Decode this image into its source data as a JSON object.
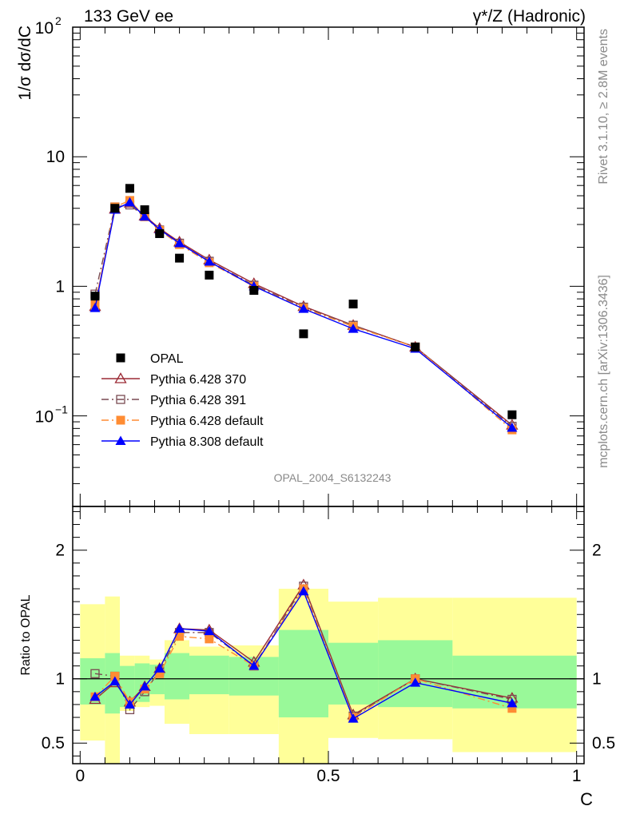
{
  "header": {
    "left_title": "133 GeV ee",
    "right_title": "γ*/Z (Hadronic)"
  },
  "side_labels": {
    "rivet": "Rivet 3.1.10, ≥ 2.8M events",
    "mcplots": "mcplots.cern.ch [arXiv:1306.3436]"
  },
  "watermark": "OPAL_2004_S6132243",
  "chart_data": [
    {
      "type": "scatter",
      "panel": "main",
      "ylabel": "1/σ dσ/dC",
      "yscale": "log",
      "ylim": [
        0.02,
        100
      ],
      "xlim": [
        -0.015,
        1.015
      ],
      "yticks": [
        {
          "value": 0.1,
          "label_base": "10",
          "label_exp": "−1"
        },
        {
          "value": 1,
          "label": "1"
        },
        {
          "value": 10,
          "label": "10"
        },
        {
          "value": 100,
          "label_base": "10",
          "label_exp": "2"
        }
      ],
      "legend_position": "lower-left",
      "x": [
        0.03,
        0.07,
        0.1,
        0.13,
        0.16,
        0.2,
        0.26,
        0.35,
        0.45,
        0.55,
        0.675,
        0.87
      ],
      "series": [
        {
          "name": "OPAL",
          "color": "#000000",
          "marker": "filled-square",
          "line": "none",
          "values": [
            0.84,
            4.0,
            5.7,
            3.9,
            2.55,
            1.65,
            1.22,
            0.93,
            0.43,
            0.73,
            0.34,
            0.102
          ]
        },
        {
          "name": "Pythia 6.428 370",
          "color": "#9b2a35",
          "marker": "open-triangle",
          "line": "solid",
          "values": [
            0.7,
            3.95,
            4.4,
            3.5,
            2.8,
            2.2,
            1.6,
            1.05,
            0.7,
            0.5,
            0.34,
            0.085
          ]
        },
        {
          "name": "Pythia 6.428 391",
          "color": "#7a4a52",
          "marker": "open-square",
          "line": "dash-dot",
          "values": [
            0.87,
            4.1,
            4.25,
            3.45,
            2.72,
            2.15,
            1.56,
            1.02,
            0.69,
            0.5,
            0.34,
            0.083
          ]
        },
        {
          "name": "Pythia 6.428 default",
          "color": "#ff8c33",
          "marker": "filled-square",
          "line": "dash-dot",
          "values": [
            0.72,
            4.1,
            4.6,
            3.45,
            2.7,
            2.1,
            1.52,
            1.0,
            0.68,
            0.49,
            0.34,
            0.078
          ]
        },
        {
          "name": "Pythia 8.308 default",
          "color": "#0000ff",
          "marker": "filled-triangle",
          "line": "solid",
          "values": [
            0.68,
            3.9,
            4.45,
            3.45,
            2.75,
            2.15,
            1.55,
            1.0,
            0.67,
            0.47,
            0.33,
            0.081
          ]
        }
      ]
    },
    {
      "type": "line",
      "panel": "ratio",
      "ylabel": "Ratio to OPAL",
      "xlabel": "C",
      "ylim": [
        0.34,
        2.34
      ],
      "xlim": [
        -0.015,
        1.015
      ],
      "yticks": [
        0.5,
        1,
        2
      ],
      "xticks": [
        0,
        0.5,
        1
      ],
      "reference_line": 1,
      "bands": {
        "edges": [
          0,
          0.05,
          0.08,
          0.11,
          0.14,
          0.17,
          0.22,
          0.3,
          0.4,
          0.5,
          0.6,
          0.75,
          1.0
        ],
        "inner": [
          [
            0.8,
            1.16
          ],
          [
            0.73,
            1.2
          ],
          [
            0.78,
            1.1
          ],
          [
            0.82,
            1.12
          ],
          [
            0.88,
            1.11
          ],
          [
            0.84,
            1.2
          ],
          [
            0.88,
            1.18
          ],
          [
            0.87,
            1.17
          ],
          [
            0.7,
            1.38
          ],
          [
            0.8,
            1.28
          ],
          [
            0.78,
            1.3
          ],
          [
            0.77,
            1.18
          ]
        ],
        "outer": [
          [
            0.52,
            1.58
          ],
          [
            0.34,
            1.64
          ],
          [
            0.75,
            1.18
          ],
          [
            0.78,
            1.18
          ],
          [
            0.79,
            1.15
          ],
          [
            0.65,
            1.3
          ],
          [
            0.57,
            1.25
          ],
          [
            0.57,
            1.26
          ],
          [
            0.34,
            1.7
          ],
          [
            0.54,
            1.6
          ],
          [
            0.53,
            1.63
          ],
          [
            0.43,
            1.63
          ]
        ],
        "inner_color": "#99f999",
        "outer_color": "#ffff99"
      },
      "x": [
        0.03,
        0.07,
        0.1,
        0.13,
        0.16,
        0.2,
        0.26,
        0.35,
        0.45,
        0.55,
        0.675,
        0.87
      ],
      "series": [
        {
          "name": "Pythia 6.428 370",
          "color": "#9b2a35",
          "marker": "open-triangle",
          "line": "solid",
          "values": [
            0.84,
            0.97,
            0.82,
            0.94,
            1.08,
            1.39,
            1.38,
            1.13,
            1.73,
            0.72,
            1.0,
            0.85
          ]
        },
        {
          "name": "Pythia 6.428 391",
          "color": "#7a4a52",
          "marker": "open-square",
          "line": "dash-dot",
          "values": [
            1.04,
            1.02,
            0.76,
            0.9,
            1.06,
            1.36,
            1.36,
            1.1,
            1.72,
            0.71,
            1.0,
            0.84
          ]
        },
        {
          "name": "Pythia 6.428 default",
          "color": "#ff8c33",
          "marker": "filled-square",
          "line": "dash-dot",
          "values": [
            0.86,
            1.02,
            0.82,
            0.92,
            1.04,
            1.33,
            1.31,
            1.1,
            1.7,
            0.7,
            1.0,
            0.77
          ]
        },
        {
          "name": "Pythia 8.308 default",
          "color": "#0000ff",
          "marker": "filled-triangle",
          "line": "solid",
          "values": [
            0.86,
            0.98,
            0.8,
            0.94,
            1.08,
            1.39,
            1.37,
            1.1,
            1.68,
            0.69,
            0.97,
            0.81
          ]
        }
      ]
    }
  ]
}
